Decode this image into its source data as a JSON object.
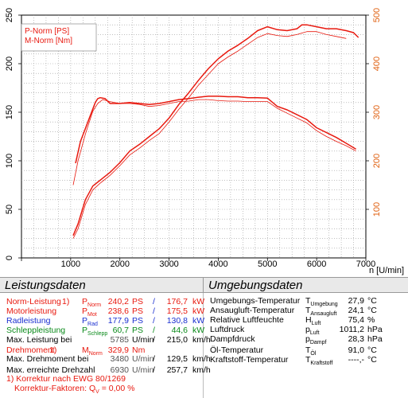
{
  "chart_data": {
    "type": "line",
    "legend": [
      "P-Norm [PS]",
      "M-Norm [Nm]"
    ],
    "xlabel": "n [U/min]",
    "xlim": [
      0,
      7000
    ],
    "xticks": [
      "0",
      "1000",
      "2000",
      "3000",
      "4000",
      "5000",
      "6000",
      "7000"
    ],
    "ylim_left": [
      0,
      250
    ],
    "yticks_left": [
      "0",
      "50",
      "100",
      "150",
      "200",
      "250"
    ],
    "ylim_right": [
      0,
      500
    ],
    "yticks_right": [
      "100",
      "200",
      "300",
      "400",
      "500"
    ],
    "series": [
      {
        "name": "P-Norm [PS]",
        "axis": "left",
        "color": "#e8190f",
        "width": 1.5,
        "x": [
          1050,
          1150,
          1300,
          1450,
          1600,
          1800,
          2000,
          2200,
          2400,
          2600,
          2800,
          3000,
          3200,
          3400,
          3600,
          3800,
          4000,
          4200,
          4400,
          4600,
          4800,
          5000,
          5200,
          5400,
          5600,
          5700,
          5800,
          6000,
          6200,
          6400,
          6600,
          6750,
          6850
        ],
        "y": [
          23,
          35,
          60,
          74,
          80,
          88,
          98,
          110,
          117,
          125,
          133,
          144,
          158,
          170,
          183,
          195,
          205,
          213,
          219,
          226,
          234,
          238,
          235,
          234,
          236,
          240,
          240,
          238,
          236,
          236,
          234,
          232,
          227
        ]
      },
      {
        "name": "P-Norm 2",
        "axis": "left",
        "color": "#e8190f",
        "width": 0.8,
        "x": [
          1050,
          1150,
          1300,
          1450,
          1600,
          1800,
          2000,
          2200,
          2400,
          2600,
          2800,
          3000,
          3200,
          3400,
          3600,
          3800,
          4000,
          4200,
          4400,
          4600,
          4800,
          5000,
          5200,
          5400,
          5600,
          5800,
          6000,
          6200,
          6400,
          6600
        ],
        "y": [
          20,
          30,
          55,
          70,
          77,
          85,
          95,
          106,
          113,
          121,
          128,
          140,
          153,
          165,
          178,
          189,
          200,
          207,
          213,
          220,
          227,
          231,
          229,
          228,
          230,
          233,
          233,
          230,
          228,
          226
        ]
      },
      {
        "name": "M-Norm [Nm]",
        "axis": "right",
        "color": "#e8190f",
        "width": 1.5,
        "x": [
          1100,
          1200,
          1350,
          1500,
          1550,
          1600,
          1700,
          1800,
          2000,
          2200,
          2400,
          2600,
          2800,
          3000,
          3200,
          3400,
          3600,
          3800,
          4000,
          4200,
          4400,
          4600,
          4800,
          5000,
          5200,
          5400,
          5600,
          5800,
          6000,
          6200,
          6400,
          6600,
          6800
        ],
        "y": [
          195,
          240,
          280,
          320,
          328,
          330,
          328,
          318,
          318,
          320,
          318,
          316,
          318,
          322,
          326,
          328,
          331,
          333,
          333,
          332,
          332,
          330,
          330,
          329,
          312,
          305,
          295,
          285,
          268,
          258,
          248,
          236,
          224
        ]
      },
      {
        "name": "M-Norm 2",
        "axis": "right",
        "color": "#e8190f",
        "width": 0.8,
        "x": [
          1050,
          1150,
          1300,
          1450,
          1550,
          1650,
          1800,
          2000,
          2200,
          2400,
          2600,
          2800,
          3000,
          3200,
          3400,
          3600,
          3800,
          4000,
          4200,
          4400,
          4600,
          4800,
          5000,
          5200,
          5400,
          5600,
          5800,
          6000,
          6200,
          6400,
          6600,
          6800
        ],
        "y": [
          150,
          200,
          255,
          302,
          318,
          326,
          322,
          318,
          318,
          316,
          312,
          314,
          318,
          322,
          323,
          326,
          326,
          324,
          323,
          323,
          322,
          322,
          322,
          308,
          298,
          288,
          278,
          262,
          250,
          240,
          231,
          220
        ]
      }
    ]
  },
  "panel": {
    "left_title": "Leistungsdaten",
    "right_title": "Umgebungsdaten",
    "rows": [
      {
        "label": "Norm-Leistung",
        "note": "1)",
        "sym": "P",
        "sub": "Norm",
        "v1": "240,2",
        "u1": "PS",
        "sep": "/",
        "v2": "176,7",
        "u2": "kW",
        "color": "red"
      },
      {
        "label": "Motorleistung",
        "note": "",
        "sym": "P",
        "sub": "Mot",
        "v1": "238,6",
        "u1": "PS",
        "sep": "/",
        "v2": "175,5",
        "u2": "kW",
        "color": "red"
      },
      {
        "label": "Radleistung",
        "note": "",
        "sym": "P",
        "sub": "Rad",
        "v1": "177,9",
        "u1": "PS",
        "sep": "/",
        "v2": "130,8",
        "u2": "kW",
        "color": "blue"
      },
      {
        "label": "Schleppleistung",
        "note": "",
        "sym": "P",
        "sub": "Schlepp",
        "v1": "60,7",
        "u1": "PS",
        "sep": "/",
        "v2": "44,6",
        "u2": "kW",
        "color": "green"
      },
      {
        "label": "Max. Leistung bei",
        "note": "",
        "sym": "",
        "sub": "",
        "v1": "5785",
        "u1": "U/min",
        "sep": "/",
        "v2": "215,0",
        "u2": "km/h",
        "color": "plain"
      }
    ],
    "torque": {
      "label": "Drehmoment",
      "note": "1)",
      "sym": "M",
      "sub": "Norm",
      "v1": "329,9",
      "u1": "Nm"
    },
    "torque_rows": [
      {
        "label": "Max. Drehmoment bei",
        "v1": "3480",
        "u1": "U/min",
        "sep": "/",
        "v2": "129,5",
        "u2": "km/h"
      },
      {
        "label": "Max. erreichte Drehzahl",
        "v1": "6930",
        "u1": "U/min",
        "sep": "/",
        "v2": "257,7",
        "u2": "km/h"
      }
    ],
    "footnote1": "1) Korrektur nach EWG 80/1269",
    "footnote2_label": "Korrektur-Faktoren: Q",
    "footnote2_sub": "V",
    "footnote2_value": " =    0,00 %",
    "env": [
      {
        "label": "Umgebungs-Temperatur",
        "sym": "T",
        "sub": "Umgebung",
        "v": "27,9",
        "u": "°C"
      },
      {
        "label": "Ansaugluft-Temperatur",
        "sym": "T",
        "sub": "Ansaugluft",
        "v": "24,1",
        "u": "°C"
      },
      {
        "label": "Relative Luftfeuchte",
        "sym": "H",
        "sub": "Luft",
        "v": "75,4",
        "u": "%"
      },
      {
        "label": "Luftdruck",
        "sym": "p",
        "sub": "Luft",
        "v": "1011,2",
        "u": "hPa"
      },
      {
        "label": "Dampfdruck",
        "sym": "p",
        "sub": "Dampf",
        "v": "28,3",
        "u": "hPa"
      },
      {
        "label": "Öl-Temperatur",
        "sym": "T",
        "sub": "Öl",
        "v": "91,0",
        "u": "°C"
      },
      {
        "label": "Kraftstoff-Temperatur",
        "sym": "T",
        "sub": "Kraftstoff",
        "v": "----,-",
        "u": "°C"
      }
    ]
  }
}
